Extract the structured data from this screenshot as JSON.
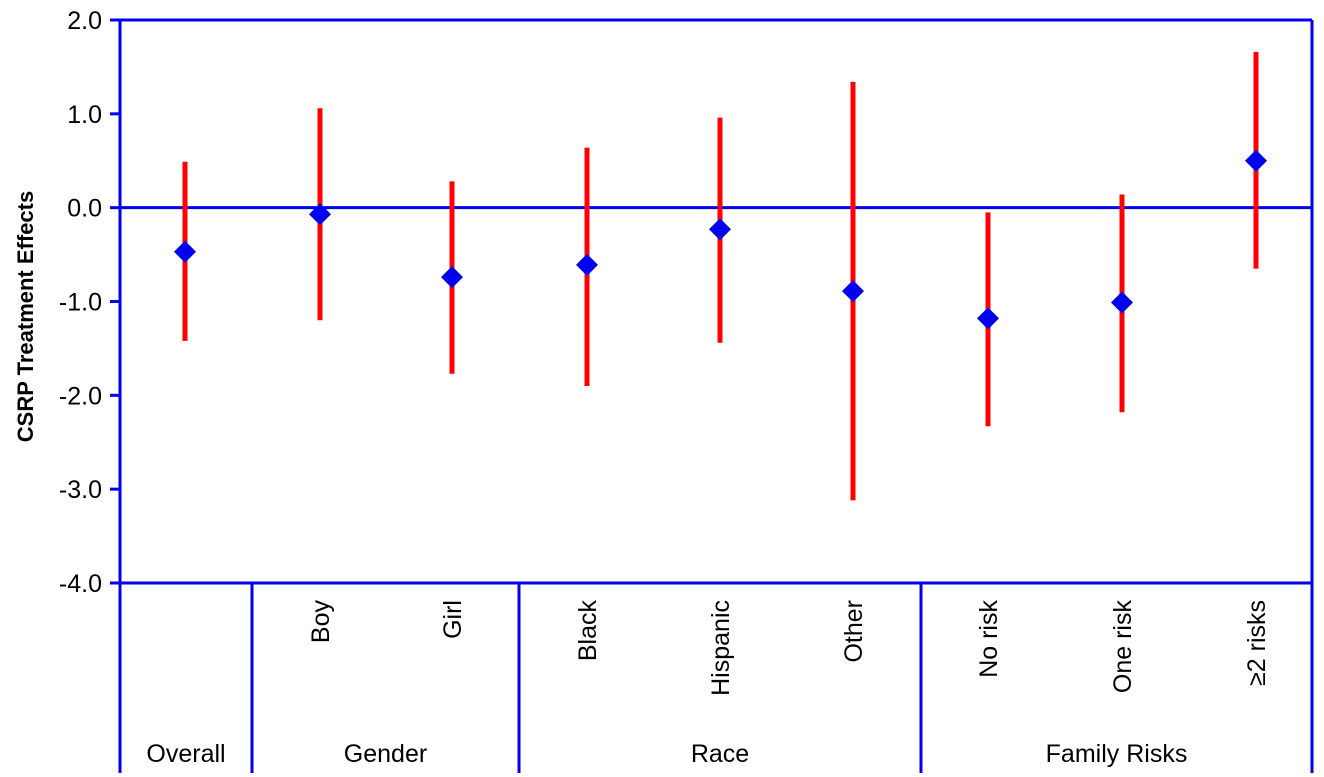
{
  "chart_data": {
    "type": "scatter",
    "ylabel": "CSRP Treatment Effects",
    "xlabel": "",
    "ylim": [
      -4.0,
      2.0
    ],
    "yticks": [
      2.0,
      1.0,
      0.0,
      -1.0,
      -2.0,
      -3.0,
      -4.0
    ],
    "ytick_labels": [
      "2.0",
      "1.0",
      "0.0",
      "-1.0",
      "-2.0",
      "-3.0",
      "-4.0"
    ],
    "grid": false,
    "legend": "none",
    "reference_line": 0.0,
    "colors": {
      "axis": "#0000ee",
      "point": "#0000ee",
      "interval": "#ff0000"
    },
    "categories": [
      "Overall",
      "Boy",
      "Girl",
      "Black",
      "Hispanic",
      "Other",
      "No risk",
      "One risk",
      "≥2 risks"
    ],
    "groups": [
      {
        "label": "Overall",
        "categories": [
          "Overall"
        ]
      },
      {
        "label": "Gender",
        "categories": [
          "Boy",
          "Girl"
        ]
      },
      {
        "label": "Race",
        "categories": [
          "Black",
          "Hispanic",
          "Other"
        ]
      },
      {
        "label": "Family Risks",
        "categories": [
          "No risk",
          "One risk",
          "≥2 risks"
        ]
      }
    ],
    "points": [
      {
        "category": "Overall",
        "estimate": -0.47,
        "lower": -1.42,
        "upper": 0.49
      },
      {
        "category": "Boy",
        "estimate": -0.07,
        "lower": -1.2,
        "upper": 1.06
      },
      {
        "category": "Girl",
        "estimate": -0.74,
        "lower": -1.77,
        "upper": 0.28
      },
      {
        "category": "Black",
        "estimate": -0.61,
        "lower": -1.9,
        "upper": 0.64
      },
      {
        "category": "Hispanic",
        "estimate": -0.23,
        "lower": -1.44,
        "upper": 0.96
      },
      {
        "category": "Other",
        "estimate": -0.89,
        "lower": -3.12,
        "upper": 1.34
      },
      {
        "category": "No risk",
        "estimate": -1.18,
        "lower": -2.33,
        "upper": -0.05
      },
      {
        "category": "One risk",
        "estimate": -1.01,
        "lower": -2.18,
        "upper": 0.14
      },
      {
        "category": "≥2 risks",
        "estimate": 0.5,
        "lower": -0.65,
        "upper": 1.66
      }
    ]
  }
}
